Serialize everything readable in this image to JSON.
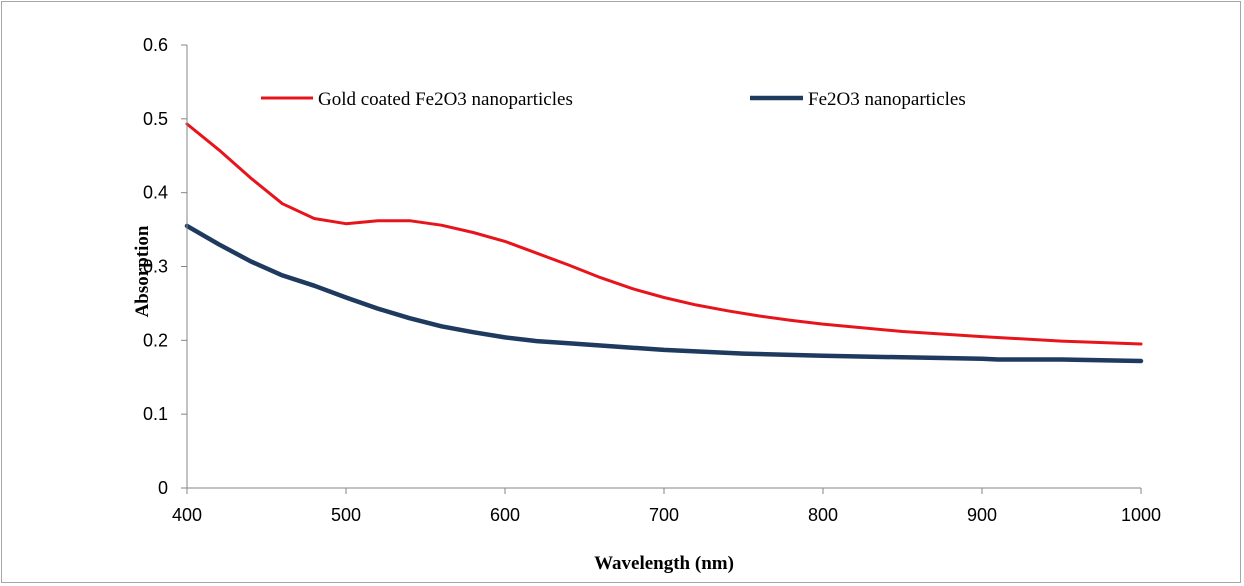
{
  "chart_data": {
    "type": "line",
    "title": "",
    "xlabel": "Wavelength (nm)",
    "ylabel": "Absorption",
    "xlim": [
      400,
      1000
    ],
    "ylim": [
      0,
      0.6
    ],
    "x_ticks": [
      "400",
      "500",
      "600",
      "700",
      "800",
      "900",
      "1000"
    ],
    "y_ticks": [
      "0",
      "0.1",
      "0.2",
      "0.3",
      "0.4",
      "0.5",
      "0.6"
    ],
    "x_tick_values": [
      400,
      500,
      600,
      700,
      800,
      900,
      1000
    ],
    "y_tick_values": [
      0,
      0.1,
      0.2,
      0.3,
      0.4,
      0.5,
      0.6
    ],
    "grid": false,
    "legend_position": "top",
    "series": [
      {
        "name": "Gold coated Fe2O3 nanoparticles",
        "color": "#e8141c",
        "x": [
          400,
          420,
          440,
          460,
          480,
          500,
          520,
          540,
          560,
          580,
          600,
          620,
          640,
          660,
          680,
          700,
          720,
          740,
          760,
          780,
          800,
          850,
          900,
          950,
          1000
        ],
        "y": [
          0.493,
          0.458,
          0.42,
          0.385,
          0.365,
          0.358,
          0.362,
          0.362,
          0.356,
          0.346,
          0.334,
          0.318,
          0.302,
          0.285,
          0.27,
          0.258,
          0.248,
          0.24,
          0.233,
          0.227,
          0.222,
          0.212,
          0.205,
          0.199,
          0.195
        ]
      },
      {
        "name": "Fe2O3 nanoparticles",
        "color": "#1f3a5f",
        "x": [
          400,
          420,
          440,
          460,
          480,
          500,
          520,
          540,
          560,
          580,
          600,
          620,
          640,
          660,
          680,
          700,
          750,
          800,
          850,
          900,
          910,
          950,
          1000
        ],
        "y": [
          0.355,
          0.33,
          0.307,
          0.288,
          0.274,
          0.258,
          0.243,
          0.23,
          0.219,
          0.211,
          0.204,
          0.199,
          0.196,
          0.193,
          0.19,
          0.187,
          0.182,
          0.179,
          0.177,
          0.175,
          0.174,
          0.174,
          0.172
        ]
      }
    ]
  }
}
